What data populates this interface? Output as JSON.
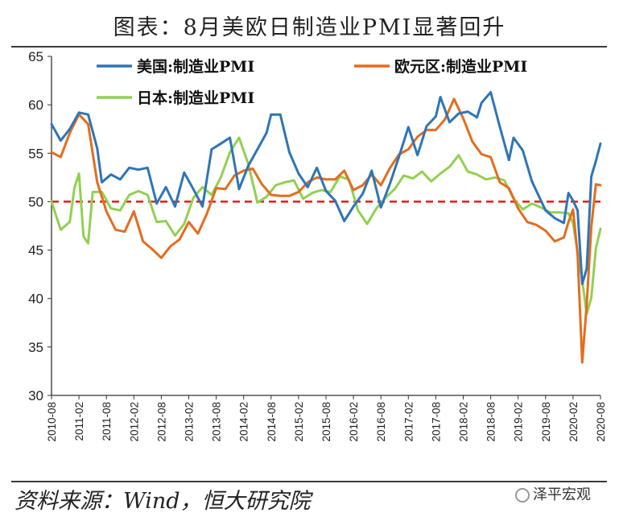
{
  "title": "图表：8月美欧日制造业PMI显著回升",
  "source": "资料来源：Wind，恒大研究院",
  "watermark": "泽平宏观",
  "chart_data": {
    "type": "line",
    "ylim": [
      30,
      65
    ],
    "yticks": [
      30,
      35,
      40,
      45,
      50,
      55,
      60,
      65
    ],
    "x_start": "2010-08",
    "x_end": "2020-08",
    "xtick_labels": [
      "2010-08",
      "2011-02",
      "2011-08",
      "2012-02",
      "2012-08",
      "2013-02",
      "2013-08",
      "2014-02",
      "2014-08",
      "2015-02",
      "2015-08",
      "2016-02",
      "2016-08",
      "2017-02",
      "2017-08",
      "2018-02",
      "2018-08",
      "2019-02",
      "2019-08",
      "2020-02",
      "2020-08"
    ],
    "grid": false,
    "legend_position": "top",
    "reference_line": {
      "value": 50,
      "color": "#e41a1c",
      "style": "dashed"
    },
    "series": [
      {
        "name": "美国:制造业PMI",
        "color": "#2e75b6",
        "points": [
          [
            "2010-08",
            58
          ],
          [
            "2010-10",
            56.3
          ],
          [
            "2010-12",
            57.5
          ],
          [
            "2011-02",
            59.2
          ],
          [
            "2011-04",
            59
          ],
          [
            "2011-06",
            55.5
          ],
          [
            "2011-07",
            52
          ],
          [
            "2011-09",
            52.8
          ],
          [
            "2011-11",
            52.3
          ],
          [
            "2012-01",
            53.5
          ],
          [
            "2012-03",
            53.3
          ],
          [
            "2012-05",
            53.5
          ],
          [
            "2012-07",
            49.8
          ],
          [
            "2012-09",
            51.5
          ],
          [
            "2012-11",
            49.5
          ],
          [
            "2013-01",
            53
          ],
          [
            "2013-03",
            51.3
          ],
          [
            "2013-05",
            49.5
          ],
          [
            "2013-07",
            55.4
          ],
          [
            "2013-09",
            56
          ],
          [
            "2013-11",
            56.6
          ],
          [
            "2014-01",
            51.3
          ],
          [
            "2014-03",
            53.7
          ],
          [
            "2014-05",
            55.4
          ],
          [
            "2014-07",
            57.1
          ],
          [
            "2014-08",
            59
          ],
          [
            "2014-10",
            59
          ],
          [
            "2014-12",
            55.1
          ],
          [
            "2015-02",
            52.9
          ],
          [
            "2015-04",
            51.5
          ],
          [
            "2015-06",
            53.5
          ],
          [
            "2015-08",
            51.1
          ],
          [
            "2015-10",
            50.1
          ],
          [
            "2015-12",
            48
          ],
          [
            "2016-02",
            49.5
          ],
          [
            "2016-04",
            50.8
          ],
          [
            "2016-06",
            53.2
          ],
          [
            "2016-08",
            49.4
          ],
          [
            "2016-10",
            51.9
          ],
          [
            "2016-12",
            54.7
          ],
          [
            "2017-02",
            57.7
          ],
          [
            "2017-04",
            54.8
          ],
          [
            "2017-06",
            57.8
          ],
          [
            "2017-08",
            58.8
          ],
          [
            "2017-09",
            60.8
          ],
          [
            "2017-11",
            58.2
          ],
          [
            "2018-01",
            59.1
          ],
          [
            "2018-03",
            59.3
          ],
          [
            "2018-05",
            58.7
          ],
          [
            "2018-06",
            60.2
          ],
          [
            "2018-08",
            61.3
          ],
          [
            "2018-10",
            57.7
          ],
          [
            "2018-12",
            54.3
          ],
          [
            "2019-01",
            56.6
          ],
          [
            "2019-03",
            55.3
          ],
          [
            "2019-05",
            52.1
          ],
          [
            "2019-08",
            49.1
          ],
          [
            "2019-10",
            48.3
          ],
          [
            "2019-12",
            47.8
          ],
          [
            "2020-01",
            50.9
          ],
          [
            "2020-02",
            50.1
          ],
          [
            "2020-03",
            49.1
          ],
          [
            "2020-04",
            41.5
          ],
          [
            "2020-05",
            43.1
          ],
          [
            "2020-06",
            52.6
          ],
          [
            "2020-07",
            54.2
          ],
          [
            "2020-08",
            56
          ]
        ]
      },
      {
        "name": "欧元区:制造业PMI",
        "color": "#e46c1e",
        "points": [
          [
            "2010-08",
            55.1
          ],
          [
            "2010-10",
            54.6
          ],
          [
            "2010-12",
            57.1
          ],
          [
            "2011-02",
            59
          ],
          [
            "2011-04",
            58
          ],
          [
            "2011-06",
            52
          ],
          [
            "2011-08",
            49
          ],
          [
            "2011-10",
            47.1
          ],
          [
            "2011-12",
            46.9
          ],
          [
            "2012-02",
            49
          ],
          [
            "2012-04",
            45.9
          ],
          [
            "2012-06",
            45.1
          ],
          [
            "2012-08",
            44.2
          ],
          [
            "2012-10",
            45.4
          ],
          [
            "2012-12",
            46.1
          ],
          [
            "2013-02",
            47.9
          ],
          [
            "2013-04",
            46.7
          ],
          [
            "2013-06",
            48.8
          ],
          [
            "2013-08",
            51.4
          ],
          [
            "2013-10",
            51.3
          ],
          [
            "2013-12",
            52.7
          ],
          [
            "2014-02",
            53.2
          ],
          [
            "2014-04",
            53.4
          ],
          [
            "2014-06",
            51.8
          ],
          [
            "2014-08",
            50.7
          ],
          [
            "2014-10",
            50.6
          ],
          [
            "2014-12",
            50.6
          ],
          [
            "2015-02",
            51
          ],
          [
            "2015-04",
            52
          ],
          [
            "2015-06",
            52.5
          ],
          [
            "2015-08",
            52.3
          ],
          [
            "2015-10",
            52.3
          ],
          [
            "2015-12",
            53.2
          ],
          [
            "2016-02",
            51.2
          ],
          [
            "2016-04",
            51.7
          ],
          [
            "2016-06",
            52.8
          ],
          [
            "2016-08",
            51.7
          ],
          [
            "2016-10",
            53.5
          ],
          [
            "2016-12",
            54.9
          ],
          [
            "2017-02",
            55.4
          ],
          [
            "2017-04",
            56.7
          ],
          [
            "2017-06",
            57.4
          ],
          [
            "2017-08",
            57.4
          ],
          [
            "2017-10",
            58.5
          ],
          [
            "2017-12",
            60.6
          ],
          [
            "2018-02",
            58.6
          ],
          [
            "2018-04",
            56.2
          ],
          [
            "2018-06",
            54.9
          ],
          [
            "2018-08",
            54.6
          ],
          [
            "2018-10",
            52
          ],
          [
            "2018-12",
            51.4
          ],
          [
            "2019-02",
            49.3
          ],
          [
            "2019-04",
            47.9
          ],
          [
            "2019-06",
            47.6
          ],
          [
            "2019-08",
            47
          ],
          [
            "2019-10",
            45.9
          ],
          [
            "2019-12",
            46.3
          ],
          [
            "2020-01",
            47.9
          ],
          [
            "2020-02",
            49.2
          ],
          [
            "2020-03",
            44.5
          ],
          [
            "2020-04",
            33.4
          ],
          [
            "2020-05",
            39.4
          ],
          [
            "2020-06",
            47.4
          ],
          [
            "2020-07",
            51.8
          ],
          [
            "2020-08",
            51.7
          ]
        ]
      },
      {
        "name": "日本:制造业PMI",
        "color": "#92d050",
        "points": [
          [
            "2010-08",
            50
          ],
          [
            "2010-10",
            47.1
          ],
          [
            "2010-12",
            47.9
          ],
          [
            "2011-01",
            51.4
          ],
          [
            "2011-02",
            52.9
          ],
          [
            "2011-03",
            46.4
          ],
          [
            "2011-04",
            45.7
          ],
          [
            "2011-05",
            51
          ],
          [
            "2011-07",
            51
          ],
          [
            "2011-09",
            49.3
          ],
          [
            "2011-11",
            49.1
          ],
          [
            "2012-01",
            50.7
          ],
          [
            "2012-03",
            51.1
          ],
          [
            "2012-05",
            50.7
          ],
          [
            "2012-07",
            47.9
          ],
          [
            "2012-09",
            48
          ],
          [
            "2012-11",
            46.5
          ],
          [
            "2013-01",
            47.7
          ],
          [
            "2013-03",
            50.4
          ],
          [
            "2013-05",
            51.5
          ],
          [
            "2013-07",
            50.7
          ],
          [
            "2013-09",
            52.5
          ],
          [
            "2013-11",
            55.1
          ],
          [
            "2014-01",
            56.6
          ],
          [
            "2014-03",
            53.9
          ],
          [
            "2014-05",
            49.9
          ],
          [
            "2014-07",
            50.5
          ],
          [
            "2014-09",
            51.7
          ],
          [
            "2014-11",
            52
          ],
          [
            "2015-01",
            52.2
          ],
          [
            "2015-03",
            50.3
          ],
          [
            "2015-05",
            50.9
          ],
          [
            "2015-07",
            51.2
          ],
          [
            "2015-09",
            51
          ],
          [
            "2015-11",
            52.6
          ],
          [
            "2016-01",
            52.3
          ],
          [
            "2016-03",
            49.1
          ],
          [
            "2016-05",
            47.7
          ],
          [
            "2016-07",
            49.3
          ],
          [
            "2016-09",
            50.4
          ],
          [
            "2016-11",
            51.3
          ],
          [
            "2017-01",
            52.7
          ],
          [
            "2017-03",
            52.4
          ],
          [
            "2017-05",
            53.1
          ],
          [
            "2017-07",
            52.1
          ],
          [
            "2017-09",
            52.9
          ],
          [
            "2017-11",
            53.6
          ],
          [
            "2018-01",
            54.8
          ],
          [
            "2018-03",
            53.1
          ],
          [
            "2018-05",
            52.8
          ],
          [
            "2018-07",
            52.3
          ],
          [
            "2018-09",
            52.5
          ],
          [
            "2018-11",
            52.2
          ],
          [
            "2019-01",
            50.3
          ],
          [
            "2019-03",
            49.2
          ],
          [
            "2019-05",
            49.8
          ],
          [
            "2019-07",
            49.4
          ],
          [
            "2019-09",
            48.9
          ],
          [
            "2019-11",
            48.9
          ],
          [
            "2020-01",
            48.8
          ],
          [
            "2020-02",
            47.8
          ],
          [
            "2020-03",
            44.8
          ],
          [
            "2020-04",
            41.9
          ],
          [
            "2020-05",
            38.4
          ],
          [
            "2020-06",
            40.1
          ],
          [
            "2020-07",
            45.2
          ],
          [
            "2020-08",
            47.2
          ]
        ]
      }
    ]
  }
}
